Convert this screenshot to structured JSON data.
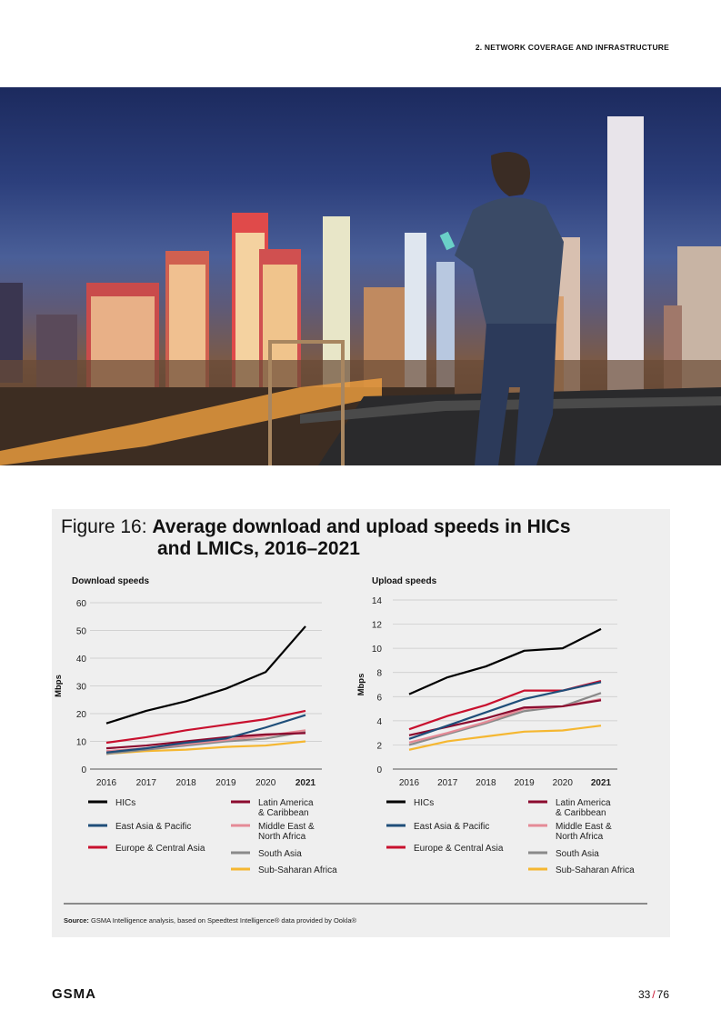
{
  "header": {
    "section_title": "2. NETWORK COVERAGE AND INFRASTRUCTURE"
  },
  "figure": {
    "label": "Figure 16: ",
    "title_line1": "Average download and upload speeds in HICs",
    "title_line2": "and LMICs, 2016–2021",
    "source_label": "Source:",
    "source_text": " GSMA Intelligence analysis, based on Speedtest Intelligence® data provided by Ookla®"
  },
  "colors": {
    "HICs": "#000000",
    "East Asia & Pacific": "#1f4e79",
    "Europe & Central Asia": "#c8102e",
    "Latin America & Caribbean": "#8b0a2e",
    "Middle East & North Africa": "#e58a96",
    "South Asia": "#8a8a8a",
    "Sub-Saharan Africa": "#f5b731"
  },
  "legend": [
    {
      "key": "HICs",
      "line1": "HICs",
      "line2": ""
    },
    {
      "key": "East Asia & Pacific",
      "line1": "East Asia & Pacific",
      "line2": ""
    },
    {
      "key": "Europe & Central Asia",
      "line1": "Europe & Central Asia",
      "line2": ""
    },
    {
      "key": "Latin America & Caribbean",
      "line1": "Latin America",
      "line2": "& Caribbean"
    },
    {
      "key": "Middle East & North Africa",
      "line1": "Middle East &",
      "line2": "North Africa"
    },
    {
      "key": "South Asia",
      "line1": "South Asia",
      "line2": ""
    },
    {
      "key": "Sub-Saharan Africa",
      "line1": "Sub-Saharan Africa",
      "line2": ""
    }
  ],
  "chart_data": [
    {
      "type": "line",
      "title": "Download speeds",
      "ylabel": "Mbps",
      "categories": [
        "2016",
        "2017",
        "2018",
        "2019",
        "2020",
        "2021"
      ],
      "bold_category": "2021",
      "ylim": [
        0,
        60
      ],
      "yticks": [
        0,
        10,
        20,
        30,
        40,
        50,
        60
      ],
      "grid": true,
      "series": [
        {
          "name": "HICs",
          "values": [
            16.5,
            21,
            24.5,
            29,
            35,
            51.5
          ]
        },
        {
          "name": "East Asia & Pacific",
          "values": [
            6,
            7.5,
            9.5,
            11,
            15,
            19.5
          ]
        },
        {
          "name": "Europe & Central Asia",
          "values": [
            9.5,
            11.5,
            14,
            16,
            18,
            21
          ]
        },
        {
          "name": "Latin America & Caribbean",
          "values": [
            7.5,
            8.5,
            10,
            11.5,
            12.5,
            13
          ]
        },
        {
          "name": "Middle East & North Africa",
          "values": [
            6.5,
            7.5,
            9,
            10.5,
            12,
            14
          ]
        },
        {
          "name": "South Asia",
          "values": [
            5.5,
            7,
            8.5,
            10,
            11,
            13.5
          ]
        },
        {
          "name": "Sub-Saharan Africa",
          "values": [
            5.5,
            6.5,
            7,
            8,
            8.5,
            10
          ]
        }
      ]
    },
    {
      "type": "line",
      "title": "Upload speeds",
      "ylabel": "Mbps",
      "categories": [
        "2016",
        "2017",
        "2018",
        "2019",
        "2020",
        "2021"
      ],
      "bold_category": "2021",
      "ylim": [
        0,
        14
      ],
      "yticks": [
        0,
        2,
        4,
        6,
        8,
        10,
        12,
        14
      ],
      "grid": true,
      "series": [
        {
          "name": "HICs",
          "values": [
            6.2,
            7.6,
            8.5,
            9.8,
            10,
            11.6
          ]
        },
        {
          "name": "East Asia & Pacific",
          "values": [
            2.5,
            3.6,
            4.7,
            5.8,
            6.5,
            7.2
          ]
        },
        {
          "name": "Europe & Central Asia",
          "values": [
            3.3,
            4.4,
            5.3,
            6.5,
            6.5,
            7.3
          ]
        },
        {
          "name": "Latin America & Caribbean",
          "values": [
            2.8,
            3.5,
            4.2,
            5.1,
            5.2,
            5.7
          ]
        },
        {
          "name": "Middle East & North Africa",
          "values": [
            2.2,
            3,
            3.9,
            5,
            5.2,
            5.8
          ]
        },
        {
          "name": "South Asia",
          "values": [
            2,
            2.9,
            3.8,
            4.8,
            5.2,
            6.3
          ]
        },
        {
          "name": "Sub-Saharan Africa",
          "values": [
            1.6,
            2.3,
            2.7,
            3.1,
            3.2,
            3.6
          ]
        }
      ]
    }
  ],
  "footer": {
    "logo": "GSMA",
    "page_current": "33",
    "page_sep": "/",
    "page_total": "76"
  }
}
